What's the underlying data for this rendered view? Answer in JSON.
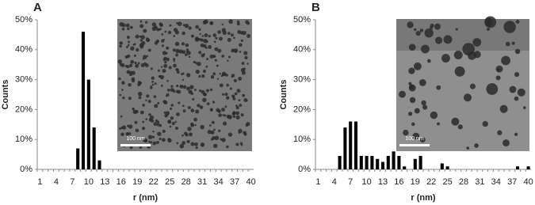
{
  "chart_data": [
    {
      "type": "bar",
      "panel": "A",
      "x_label": "r (nm)",
      "y_label": "Counts",
      "inset_scale": "100 nm",
      "color": "#000000",
      "categories": [
        "1",
        null,
        null,
        "4",
        null,
        null,
        "7",
        null,
        null,
        "10",
        null,
        null,
        "13",
        null,
        null,
        "16",
        null,
        null,
        "19",
        null,
        null,
        "22",
        null,
        null,
        "25",
        null,
        null,
        "28",
        null,
        null,
        "31",
        null,
        null,
        "34",
        null,
        null,
        "37",
        null,
        null,
        "40"
      ],
      "values": [
        0,
        0,
        0,
        0,
        0,
        0,
        0,
        7,
        46,
        30,
        14,
        3,
        0,
        0,
        0,
        0,
        0,
        0,
        0,
        0,
        0,
        0,
        0,
        0,
        0,
        0,
        0,
        0,
        0,
        0,
        0,
        0,
        0,
        0,
        0,
        0,
        0,
        0,
        0,
        0
      ],
      "ylim": [
        0,
        50
      ],
      "yticks": [
        {
          "value": 0,
          "label": "0%"
        },
        {
          "value": 10,
          "label": "10%"
        },
        {
          "value": 20,
          "label": "20%"
        },
        {
          "value": 30,
          "label": "30%"
        },
        {
          "value": 40,
          "label": "40%"
        },
        {
          "value": 50,
          "label": "50%"
        }
      ]
    },
    {
      "type": "bar",
      "panel": "B",
      "x_label": "r (nm)",
      "y_label": "Counts",
      "inset_scale": "100 nm",
      "color": "#000000",
      "categories": [
        "1",
        null,
        null,
        "4",
        null,
        null,
        "7",
        null,
        null,
        "10",
        null,
        null,
        "13",
        null,
        null,
        "16",
        null,
        null,
        "19",
        null,
        null,
        "22",
        null,
        null,
        "25",
        null,
        null,
        "28",
        null,
        null,
        "31",
        null,
        null,
        "34",
        null,
        null,
        "37",
        null,
        null,
        "40"
      ],
      "values": [
        0,
        0,
        0,
        0,
        4.5,
        14,
        16,
        16,
        4.5,
        4.5,
        4.5,
        3.5,
        2.5,
        4.5,
        6,
        4.5,
        1,
        0,
        3.5,
        4.5,
        0,
        0,
        0,
        2,
        1,
        0,
        0,
        0,
        0,
        0,
        0,
        0,
        0,
        0,
        0,
        0,
        0,
        1,
        0,
        1
      ],
      "ylim": [
        0,
        50
      ],
      "yticks": [
        {
          "value": 0,
          "label": "0%"
        },
        {
          "value": 10,
          "label": "10%"
        },
        {
          "value": 20,
          "label": "20%"
        },
        {
          "value": 30,
          "label": "30%"
        },
        {
          "value": 40,
          "label": "40%"
        },
        {
          "value": 50,
          "label": "50%"
        }
      ]
    }
  ]
}
